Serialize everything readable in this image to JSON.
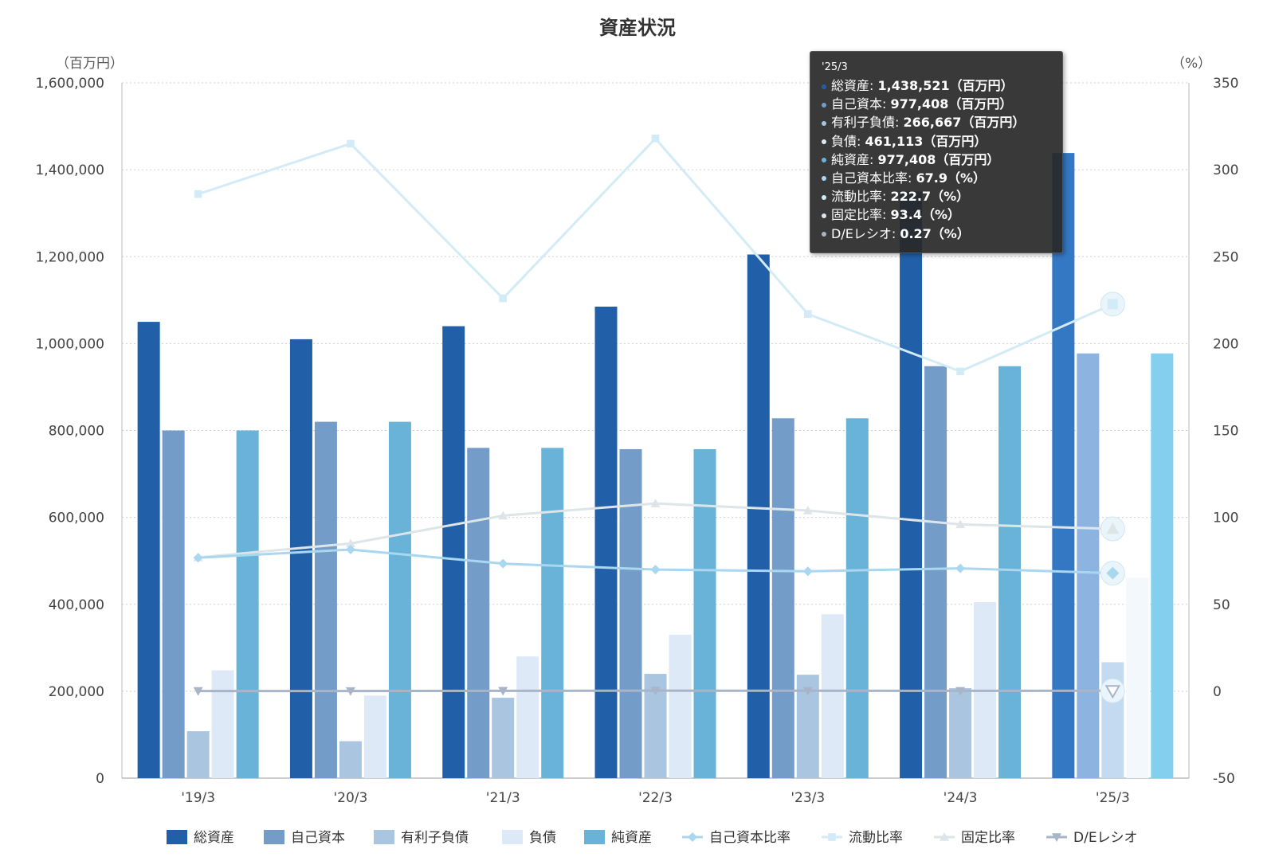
{
  "chart_data": {
    "type": "bar",
    "title": "資産状況",
    "left_axis_unit": "（百万円）",
    "right_axis_unit": "（%）",
    "categories": [
      "'19/3",
      "'20/3",
      "'21/3",
      "'22/3",
      "'23/3",
      "'24/3",
      "'25/3"
    ],
    "left_axis": {
      "min": 0,
      "max": 1600000,
      "ticks": [
        "0",
        "200,000",
        "400,000",
        "600,000",
        "800,000",
        "1,000,000",
        "1,200,000",
        "1,400,000",
        "1,600,000"
      ]
    },
    "right_axis": {
      "min": -50,
      "max": 350,
      "ticks": [
        "-50",
        "0",
        "50",
        "100",
        "150",
        "200",
        "250",
        "300",
        "350"
      ]
    },
    "grid": true,
    "legend_position": "bottom",
    "bar_series": [
      {
        "name": "総資産",
        "color": "#2160a8",
        "values": [
          1050000,
          1010000,
          1040000,
          1085000,
          1205000,
          1350000,
          1438521
        ]
      },
      {
        "name": "自己資本",
        "color": "#749cc9",
        "values": [
          800000,
          820000,
          760000,
          757000,
          828000,
          948000,
          977408
        ]
      },
      {
        "name": "有利子負債",
        "color": "#a9c5df",
        "values": [
          108000,
          85000,
          185000,
          240000,
          238000,
          207000,
          266667
        ]
      },
      {
        "name": "負債",
        "color": "#dde9f6",
        "values": [
          248000,
          190000,
          280000,
          330000,
          377000,
          405000,
          461113
        ]
      },
      {
        "name": "純資産",
        "color": "#6ab3d8",
        "values": [
          800000,
          820000,
          760000,
          757000,
          828000,
          948000,
          977408
        ]
      }
    ],
    "line_series": [
      {
        "name": "自己資本比率",
        "color": "#a9d7f0",
        "marker": "diamond",
        "values": [
          76.8,
          81.5,
          73.4,
          70.0,
          69.0,
          70.7,
          67.9
        ]
      },
      {
        "name": "流動比率",
        "color": "#d3ebf7",
        "marker": "square",
        "values": [
          286,
          315,
          226,
          318,
          217,
          184,
          222.7
        ]
      },
      {
        "name": "固定比率",
        "color": "#dde5e8",
        "marker": "triangle-up",
        "values": [
          77,
          85,
          101,
          108,
          104,
          96,
          93.4
        ]
      },
      {
        "name": "D/Eレシオ",
        "color": "#a8b4c8",
        "marker": "triangle-down",
        "values": [
          0.14,
          0.1,
          0.24,
          0.32,
          0.29,
          0.22,
          0.27
        ]
      }
    ],
    "highlight_index": 6
  },
  "tooltip": {
    "header": "'25/3",
    "rows": [
      {
        "label": "総資産",
        "value": "1,438,521（百万円）",
        "color": "#2160a8"
      },
      {
        "label": "自己資本",
        "value": "977,408（百万円）",
        "color": "#749cc9"
      },
      {
        "label": "有利子負債",
        "value": "266,667（百万円）",
        "color": "#a9c5df"
      },
      {
        "label": "負債",
        "value": "461,113（百万円）",
        "color": "#dde9f6"
      },
      {
        "label": "純資産",
        "value": "977,408（百万円）",
        "color": "#6ab3d8"
      },
      {
        "label": "自己資本比率",
        "value": "67.9（%）",
        "color": "#a9d7f0"
      },
      {
        "label": "流動比率",
        "value": "222.7（%）",
        "color": "#d3ebf7"
      },
      {
        "label": "固定比率",
        "value": "93.4（%）",
        "color": "#dde5e8"
      },
      {
        "label": "D/Eレシオ",
        "value": "0.27（%）",
        "color": "#a8b4c8"
      }
    ]
  }
}
